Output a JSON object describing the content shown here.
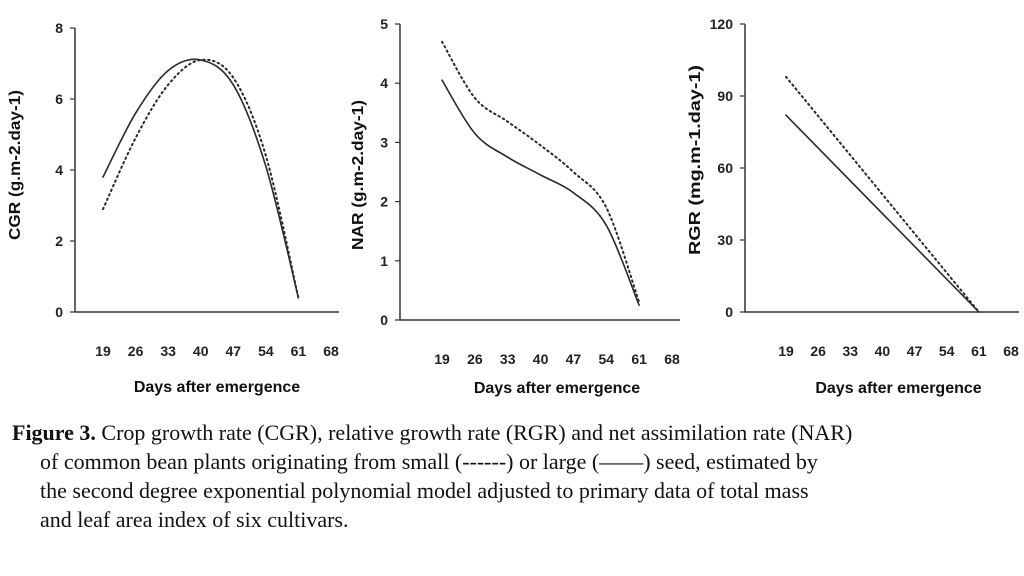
{
  "chart_data": [
    {
      "type": "line",
      "ylabel": "CGR (g.m-2.day-1)",
      "xlabel": "Days after emergence",
      "xticks": [
        19,
        26,
        33,
        40,
        47,
        54,
        61,
        68
      ],
      "yticks": [
        0,
        2,
        4,
        6,
        8
      ],
      "xlim": [
        19,
        68
      ],
      "ylim": [
        0,
        8
      ],
      "series": [
        {
          "style": "dotted",
          "x": [
            19,
            26,
            33,
            40,
            47,
            54,
            61
          ],
          "y": [
            2.9,
            4.9,
            6.4,
            7.1,
            6.6,
            4.4,
            0.4
          ]
        },
        {
          "style": "solid",
          "x": [
            19,
            26,
            33,
            40,
            47,
            54,
            61
          ],
          "y": [
            3.8,
            5.6,
            6.8,
            7.1,
            6.4,
            4.1,
            0.4
          ]
        }
      ]
    },
    {
      "type": "line",
      "ylabel": "NAR (g.m-2.day-1)",
      "xlabel": "Days after emergence",
      "xticks": [
        19,
        26,
        33,
        40,
        47,
        54,
        61,
        68
      ],
      "yticks": [
        0,
        1,
        2,
        3,
        4,
        5
      ],
      "xlim": [
        19,
        68
      ],
      "ylim": [
        0,
        5
      ],
      "series": [
        {
          "style": "dotted",
          "x": [
            19,
            26,
            33,
            40,
            47,
            54,
            61
          ],
          "y": [
            4.7,
            3.75,
            3.35,
            2.95,
            2.5,
            1.9,
            0.3
          ]
        },
        {
          "style": "solid",
          "x": [
            19,
            26,
            33,
            40,
            47,
            54,
            61
          ],
          "y": [
            4.05,
            3.15,
            2.75,
            2.45,
            2.15,
            1.6,
            0.25
          ]
        }
      ]
    },
    {
      "type": "line",
      "ylabel": "RGR (mg.m-1.day-1)",
      "xlabel": "Days after emergence",
      "xticks": [
        19,
        26,
        33,
        40,
        47,
        54,
        61,
        68
      ],
      "yticks": [
        0,
        30,
        60,
        90,
        120
      ],
      "xlim": [
        19,
        68
      ],
      "ylim": [
        0,
        120
      ],
      "series": [
        {
          "style": "dotted",
          "x": [
            19,
            61
          ],
          "y": [
            98,
            0
          ]
        },
        {
          "style": "solid",
          "x": [
            19,
            61
          ],
          "y": [
            82,
            0
          ]
        }
      ]
    }
  ],
  "caption": {
    "label": "Figure 3.",
    "line1": " Crop growth rate (CGR), relative growth rate (RGR) and net assimilation rate (NAR)",
    "line2": "of common bean plants originating from small (------) or large (——)  seed, estimated by",
    "line3": "the second degree exponential polynomial model adjusted to  primary data of total mass",
    "line4": "and leaf area index of six cultivars."
  }
}
